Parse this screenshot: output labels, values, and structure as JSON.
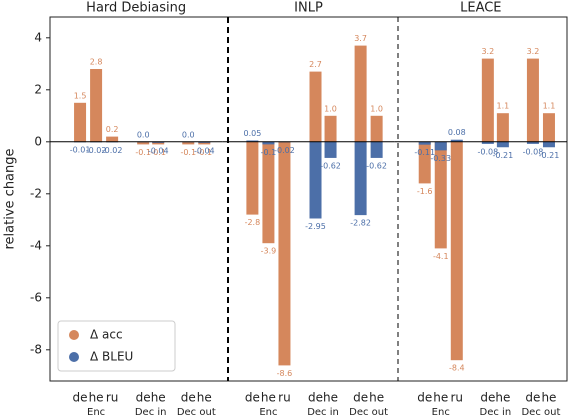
{
  "chart_data": [
    {
      "type": "bar",
      "title": "Hard Debiasing",
      "ylabel": "relative change",
      "groups": [
        {
          "name": "Enc",
          "categories": [
            "de",
            "he",
            "ru"
          ]
        },
        {
          "name": "Dec in",
          "categories": [
            "de",
            "he"
          ]
        },
        {
          "name": "Dec out",
          "categories": [
            "de",
            "he"
          ]
        }
      ],
      "series": [
        {
          "name": "Δ acc",
          "color": "#d5875c",
          "values": [
            1.5,
            2.8,
            0.2,
            -0.1,
            -0.1,
            -0.1,
            -0.1
          ],
          "value_labels": [
            "1.5",
            "2.8",
            "0.2",
            "-0.1",
            "-0.1",
            "-0.1",
            "-0.1"
          ]
        },
        {
          "name": "Δ BLEU",
          "color": "#4c6fa8",
          "values": [
            -0.01,
            -0.02,
            -0.02,
            0.0,
            -0.04,
            0.0,
            -0.04
          ],
          "value_labels": [
            "-0.01",
            "-0.02",
            "-0.02",
            "0.0",
            "-0.04",
            "0.0",
            "-0.04"
          ]
        }
      ],
      "ylim": [
        -9.2,
        4.8
      ],
      "yticks": [
        -8,
        -6,
        -4,
        -2,
        0,
        2,
        4
      ],
      "legend": "lower left"
    },
    {
      "type": "bar",
      "title": "INLP",
      "groups": [
        {
          "name": "Enc",
          "categories": [
            "de",
            "he",
            "ru"
          ]
        },
        {
          "name": "Dec in",
          "categories": [
            "de",
            "he"
          ]
        },
        {
          "name": "Dec out",
          "categories": [
            "de",
            "he"
          ]
        }
      ],
      "series": [
        {
          "name": "Δ acc",
          "color": "#d5875c",
          "values": [
            -2.8,
            -3.9,
            -8.6,
            2.7,
            1.0,
            3.7,
            1.0
          ],
          "value_labels": [
            "-2.8",
            "-3.9",
            "-8.6",
            "2.7",
            "1.0",
            "3.7",
            "1.0"
          ]
        },
        {
          "name": "Δ BLEU",
          "color": "#4c6fa8",
          "values": [
            0.05,
            -0.1,
            -0.02,
            -2.95,
            -0.62,
            -2.82,
            -0.62
          ],
          "value_labels": [
            "0.05",
            "-0.1",
            "-0.02",
            "-2.95",
            "-0.62",
            "-2.82",
            "-0.62"
          ]
        }
      ],
      "ylim": [
        -9.2,
        4.8
      ]
    },
    {
      "type": "bar",
      "title": "LEACE",
      "groups": [
        {
          "name": "Enc",
          "categories": [
            "de",
            "he",
            "ru"
          ]
        },
        {
          "name": "Dec in",
          "categories": [
            "de",
            "he"
          ]
        },
        {
          "name": "Dec out",
          "categories": [
            "de",
            "he"
          ]
        }
      ],
      "series": [
        {
          "name": "Δ acc",
          "color": "#d5875c",
          "values": [
            -1.6,
            -4.1,
            -8.4,
            3.2,
            1.1,
            3.2,
            1.1
          ],
          "value_labels": [
            "-1.6",
            "-4.1",
            "-8.4",
            "3.2",
            "1.1",
            "3.2",
            "1.1"
          ]
        },
        {
          "name": "Δ BLEU",
          "color": "#4c6fa8",
          "values": [
            -0.11,
            -0.33,
            0.08,
            -0.08,
            -0.21,
            -0.08,
            -0.21
          ],
          "value_labels": [
            "-0.11",
            "-0.33",
            "0.08",
            "-0.08",
            "-0.21",
            "-0.08",
            "-0.21"
          ]
        }
      ],
      "ylim": [
        -9.2,
        4.8
      ]
    }
  ]
}
